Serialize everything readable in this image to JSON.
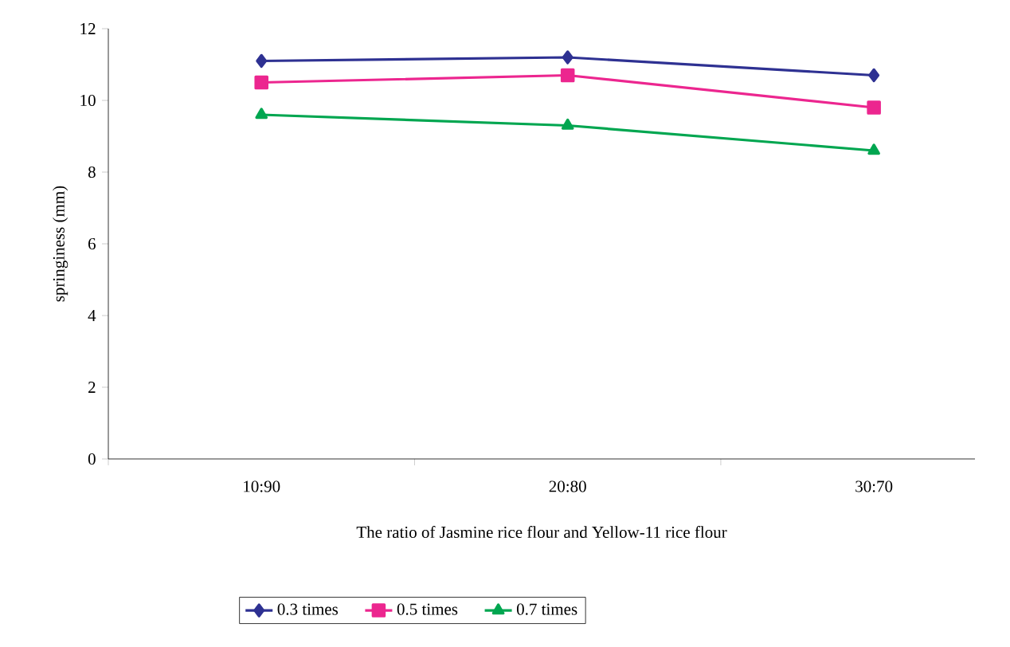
{
  "chart_data": {
    "type": "line",
    "xlabel": "The ratio of Jasmine rice flour and Yellow-11 rice flour",
    "ylabel": "springiness (mm)",
    "categories": [
      "10:90",
      "20:80",
      "30:70"
    ],
    "series": [
      {
        "name": "0.3 times",
        "color": "#2e3192",
        "marker": "diamond",
        "values": [
          11.1,
          11.2,
          10.7
        ]
      },
      {
        "name": "0.5 times",
        "color": "#ec268f",
        "marker": "square",
        "values": [
          10.5,
          10.7,
          9.8
        ]
      },
      {
        "name": "0.7 times",
        "color": "#00a650",
        "marker": "triangle",
        "values": [
          9.6,
          9.3,
          8.6
        ]
      }
    ],
    "ylim": [
      0,
      12
    ],
    "yticks": [
      0,
      2,
      4,
      6,
      8,
      10,
      12
    ],
    "grid": false,
    "legend": "bottom",
    "line_style": "solid"
  }
}
